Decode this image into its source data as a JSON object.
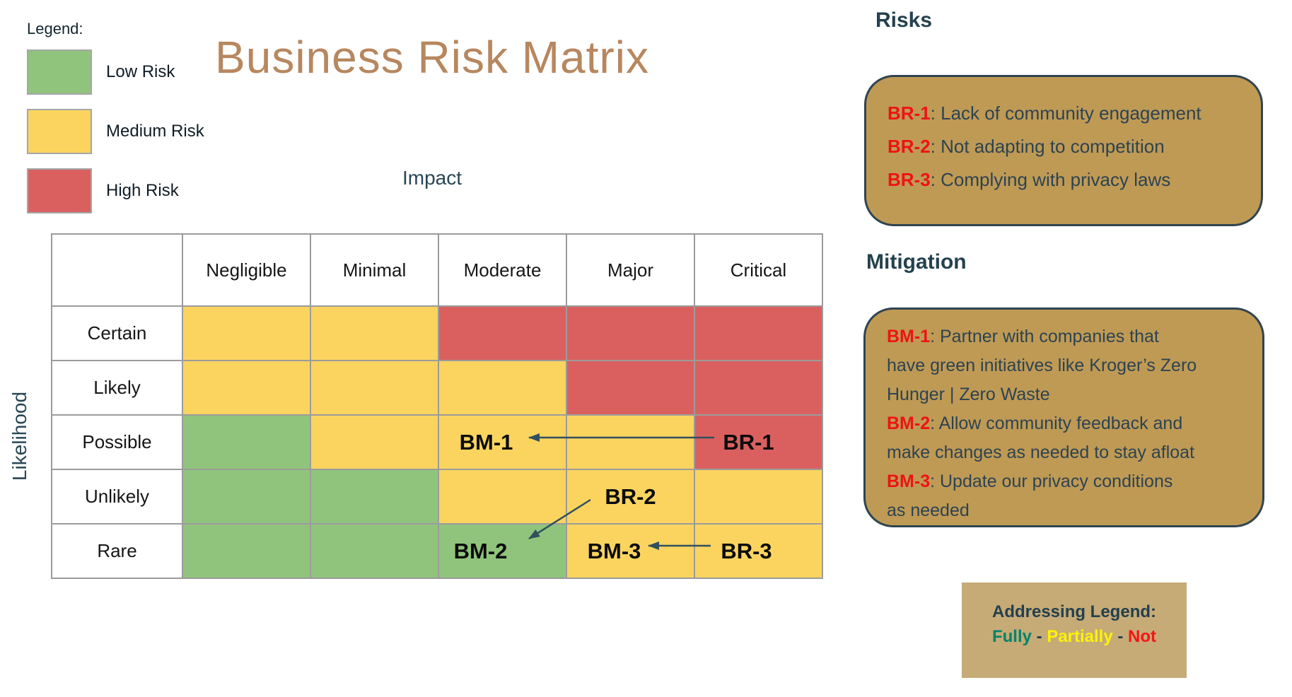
{
  "title": "Business Risk Matrix",
  "legend": {
    "title": "Legend:",
    "items": [
      {
        "label": "Low Risk",
        "level": "low"
      },
      {
        "label": "Medium Risk",
        "level": "medium"
      },
      {
        "label": "High Risk",
        "level": "high"
      }
    ]
  },
  "matrix": {
    "impact_label": "Impact",
    "likelihood_label": "Likelihood",
    "columns": [
      "Negligible",
      "Minimal",
      "Moderate",
      "Major",
      "Critical"
    ],
    "rows": [
      "Certain",
      "Likely",
      "Possible",
      "Unlikely",
      "Rare"
    ],
    "cells": [
      [
        "medium",
        "medium",
        "high",
        "high",
        "high"
      ],
      [
        "medium",
        "medium",
        "medium",
        "high",
        "high"
      ],
      [
        "low",
        "medium",
        "medium",
        "medium",
        "high"
      ],
      [
        "low",
        "low",
        "medium",
        "medium",
        "medium"
      ],
      [
        "low",
        "low",
        "low",
        "medium",
        "medium"
      ]
    ],
    "cell_labels": [
      {
        "row": 2,
        "col": 2,
        "text": "BM-1"
      },
      {
        "row": 2,
        "col": 4,
        "text": "BR-1"
      },
      {
        "row": 3,
        "col": 3,
        "text": "BR-2"
      },
      {
        "row": 4,
        "col": 2,
        "text": "BM-2"
      },
      {
        "row": 4,
        "col": 3,
        "text": "BM-3"
      },
      {
        "row": 4,
        "col": 4,
        "text": "BR-3"
      }
    ]
  },
  "risks": {
    "heading": "Risks",
    "items": [
      {
        "id": "BR-1",
        "text": ": Lack of community engagement"
      },
      {
        "id": "BR-2",
        "text": ": Not adapting to competition"
      },
      {
        "id": "BR-3",
        "text": ": Complying with privacy laws"
      }
    ]
  },
  "mitigation": {
    "heading": "Mitigation",
    "lines": [
      {
        "id": "BM-1",
        "text": ": Partner with companies that"
      },
      {
        "id": "",
        "text": "have green initiatives like Kroger’s Zero"
      },
      {
        "id": "",
        "text": "Hunger | Zero Waste"
      },
      {
        "id": "BM-2",
        "text": ": Allow community feedback and"
      },
      {
        "id": "",
        "text": "make changes as needed to stay afloat"
      },
      {
        "id": "BM-3",
        "text": ": Update our privacy conditions"
      },
      {
        "id": "",
        "text": "as needed"
      }
    ]
  },
  "addressing_legend": {
    "title": "Addressing Legend:",
    "separator": " - ",
    "items": [
      {
        "label": "Fully",
        "color": "#00846a"
      },
      {
        "label": "Partially",
        "color": "#fdf303"
      },
      {
        "label": "Not",
        "color": "#f81414"
      }
    ]
  },
  "colors": {
    "low": "#90c47c",
    "medium": "#fbd45f",
    "high": "#da605f",
    "panel_fill": "#bf9a55",
    "panel_border": "#2f4450",
    "addressing_fill": "#c6ab77",
    "title_brown": "#b7875f",
    "heading_slate": "#24414e",
    "risk_id_red": "#ee1313",
    "grid_line": "#9b9b9b",
    "arrow": "#31505e"
  },
  "chart_data": {
    "type": "heatmap",
    "title": "Business Risk Matrix",
    "xlabel": "Impact",
    "ylabel": "Likelihood",
    "x_categories": [
      "Negligible",
      "Minimal",
      "Moderate",
      "Major",
      "Critical"
    ],
    "y_categories": [
      "Certain",
      "Likely",
      "Possible",
      "Unlikely",
      "Rare"
    ],
    "values": [
      [
        "medium",
        "medium",
        "high",
        "high",
        "high"
      ],
      [
        "medium",
        "medium",
        "medium",
        "high",
        "high"
      ],
      [
        "low",
        "medium",
        "medium",
        "medium",
        "high"
      ],
      [
        "low",
        "low",
        "medium",
        "medium",
        "medium"
      ],
      [
        "low",
        "low",
        "low",
        "medium",
        "medium"
      ]
    ],
    "legend": [
      "Low Risk",
      "Medium Risk",
      "High Risk"
    ],
    "annotations": [
      {
        "x": "Moderate",
        "y": "Possible",
        "text": "BM-1"
      },
      {
        "x": "Critical",
        "y": "Possible",
        "text": "BR-1"
      },
      {
        "x": "Major",
        "y": "Unlikely",
        "text": "BR-2"
      },
      {
        "x": "Moderate",
        "y": "Rare",
        "text": "BM-2"
      },
      {
        "x": "Major",
        "y": "Rare",
        "text": "BM-3"
      },
      {
        "x": "Critical",
        "y": "Rare",
        "text": "BR-3"
      },
      {
        "arrow": "BR-1 to BM-1"
      },
      {
        "arrow": "BR-2 to BM-2"
      },
      {
        "arrow": "BR-3 to BM-3"
      }
    ]
  }
}
